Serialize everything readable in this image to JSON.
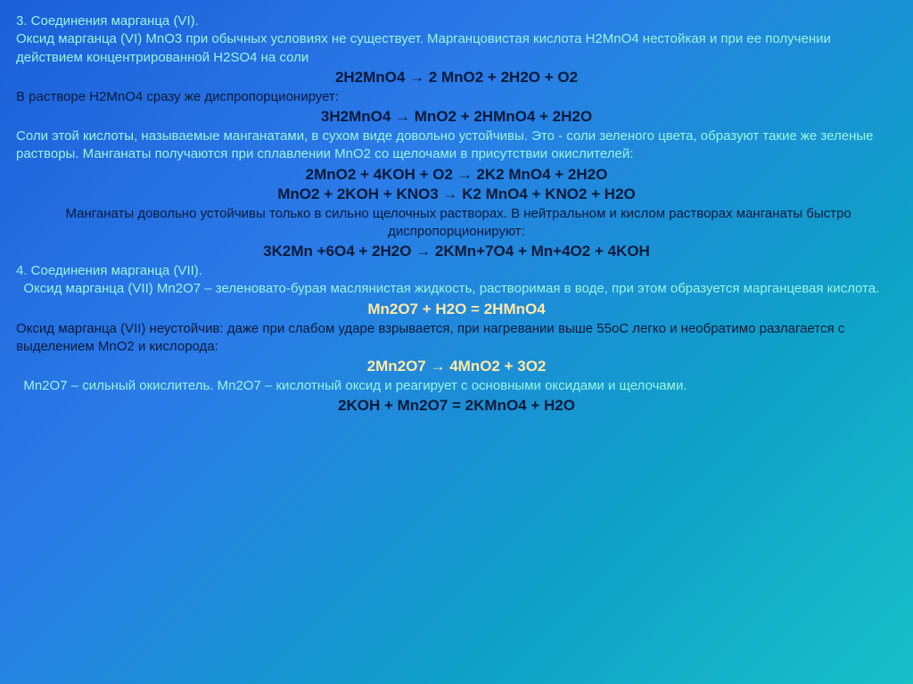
{
  "slide": {
    "background_gradient": [
      "#1b5fd8",
      "#2b7be8",
      "#0f9fc8",
      "#18c0c8"
    ],
    "font_family": "Arial, sans-serif",
    "base_fontsize": 15,
    "eq_fontsize": 17,
    "colors": {
      "teal": "#97f5e6",
      "navy": "#071a3a",
      "cream": "#ffe9a8"
    },
    "lines": [
      {
        "color": "teal",
        "text": "3. Соединения марганца (VI)."
      },
      {
        "color": "teal",
        "text": "Оксид марганца (VI) MnO3 при обычных условиях не существует. Марганцовистая кислота H2MnO4 нестойкая и при ее получении действием концентрированной H2SO4 на соли"
      },
      {
        "eq": true,
        "text": "2H2MnO4 → 2 MnO2 + 2H2O + O2"
      },
      {
        "color": "navy",
        "text": "В растворе H2MnO4 сразу же диспропорционирует:"
      },
      {
        "eq": true,
        "text": "3H2MnO4 → MnO2 + 2HMnO4 + 2H2O"
      },
      {
        "color": "teal",
        "text": "Соли этой кислоты, называемые манганатами, в сухом виде довольно устойчивы. Это - соли зеленого цвета, образуют такие же зеленые растворы. Манганаты получаются при сплавлении MnO2 со щелочами в присутствии окислителей:"
      },
      {
        "eq": true,
        "text": "2MnO2 + 4KOH + O2 → 2K2 MnO4 + 2H2O"
      },
      {
        "eq": true,
        "text": "MnO2 + 2KOH + KNO3 → K2 MnO4 + KNO2 + H2O"
      },
      {
        "color": "navy",
        "center": true,
        "text": " Манганаты довольно устойчивы только в сильно щелочных растворах. В нейтральном и кислом растворах манганаты быстро диспропорционируют:"
      },
      {
        "eq": true,
        "text": "3K2Mn +6O4 + 2H2O → 2KMn+7O4 + Mn+4O2 + 4KOH"
      },
      {
        "color": "teal",
        "text": "4. Соединения марганца (VII)."
      },
      {
        "color": "teal",
        "text": "  Оксид марганца (VII) Mn2O7 – зеленовато-бурая маслянистая жидкость, растворимая в воде, при этом образуется марганцевая кислота."
      },
      {
        "eq": true,
        "color": "cream",
        "text": "Mn2O7 + H2O = 2HMnO4"
      },
      {
        "color": "navy",
        "text": "Оксид марганца (VII) неустойчив: даже при слабом ударе взрывается, при нагревании выше 55oC легко и необратимо разлагается с выделением MnO2 и кислорода:"
      },
      {
        "eq": true,
        "color": "cream",
        "text": "2Mn2O7 → 4MnO2 + 3O2"
      },
      {
        "color": "teal",
        "text": "  Mn2O7 – сильный окислитель. Mn2O7 – кислотный оксид и реагирует с основными оксидами и щелочами."
      },
      {
        "eq": true,
        "text": "2KOH + Mn2O7 = 2KMnO4 + H2O"
      }
    ]
  }
}
